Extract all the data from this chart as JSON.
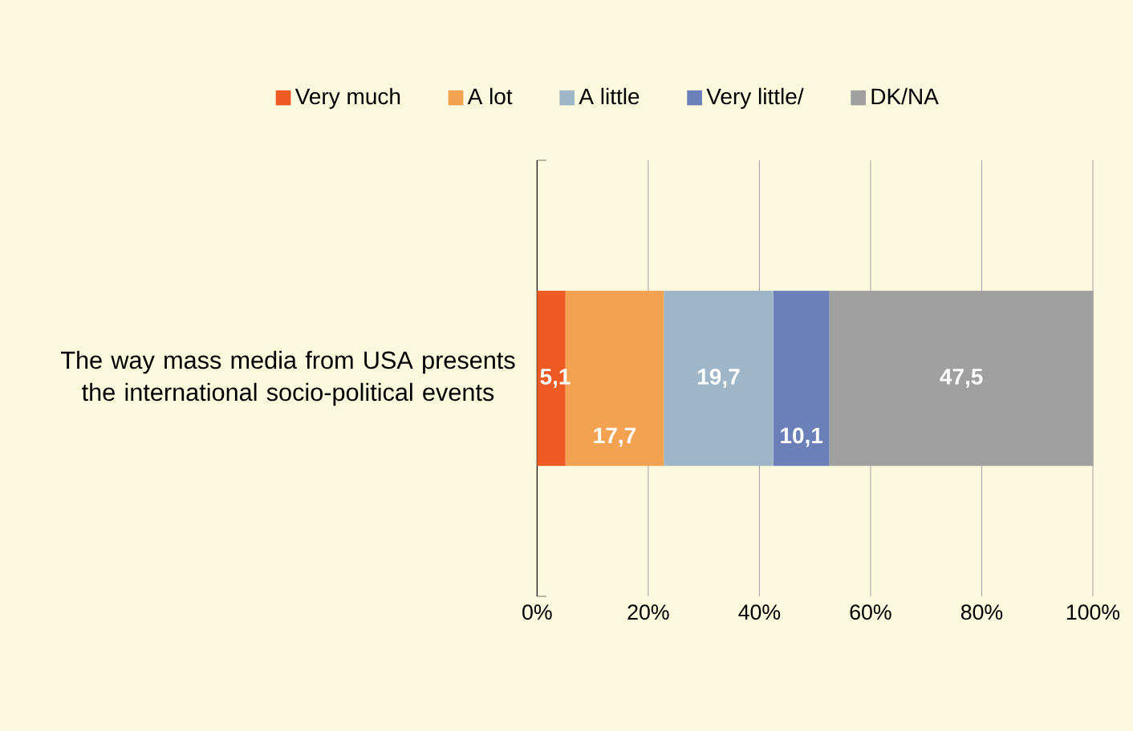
{
  "chart_data": {
    "type": "bar",
    "orientation": "horizontal",
    "stacked": true,
    "categories": [
      "The way mass media from USA presents the international socio-political events"
    ],
    "series": [
      {
        "name": "Very much",
        "color": "#ee5a24",
        "values": [
          5.1
        ],
        "value_labels": [
          "5,1"
        ]
      },
      {
        "name": "A lot",
        "color": "#f2a250",
        "values": [
          17.7
        ],
        "value_labels": [
          "17,7"
        ]
      },
      {
        "name": "A little",
        "color": "#9fb6c8",
        "values": [
          19.7
        ],
        "value_labels": [
          "19,7"
        ]
      },
      {
        "name": "Very little/",
        "color": "#6b80b8",
        "values": [
          10.1
        ],
        "value_labels": [
          "10,1"
        ]
      },
      {
        "name": "DK/NA",
        "color": "#a0a0a0",
        "values": [
          47.5
        ],
        "value_labels": [
          "47,5"
        ]
      }
    ],
    "xlim": [
      0,
      100.1
    ],
    "xticks": [
      {
        "value": 0,
        "label": "0%"
      },
      {
        "value": 20,
        "label": "20%"
      },
      {
        "value": 40,
        "label": "40%"
      },
      {
        "value": 60,
        "label": "60%"
      },
      {
        "value": 80,
        "label": "80%"
      },
      {
        "value": 100,
        "label": "100%"
      }
    ],
    "grid": "x",
    "legend": "top"
  }
}
